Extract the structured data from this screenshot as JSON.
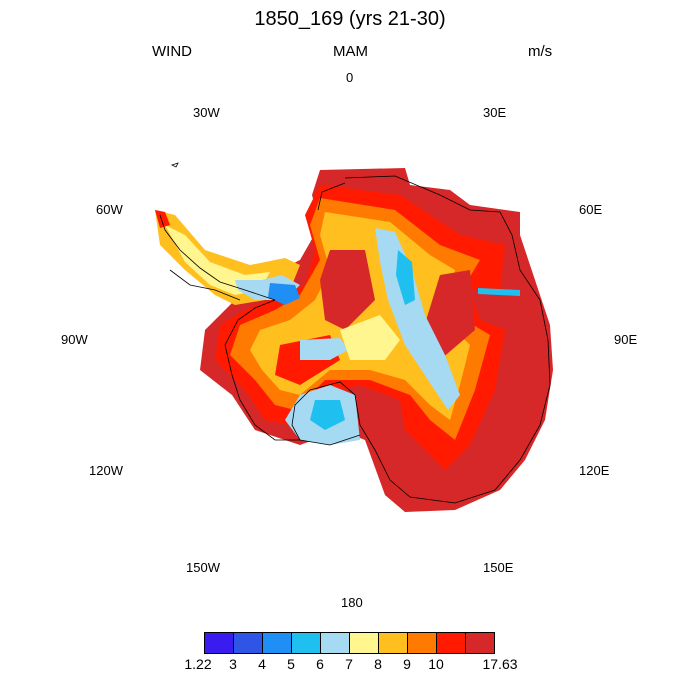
{
  "title": "1850_169 (yrs 21-30)",
  "left_label": "WIND",
  "center_label": "MAM",
  "right_label": "m/s",
  "longitude_labels": {
    "n0": "0",
    "e30": "30E",
    "w30": "30W",
    "e60": "60E",
    "w60": "60W",
    "e90": "90E",
    "w90": "90W",
    "e120": "120E",
    "w120": "120W",
    "e150": "150E",
    "w150": "150W",
    "s180": "180"
  },
  "colorbar": {
    "min_label": "1.22",
    "max_label": "17.63",
    "tick_labels": [
      "3",
      "4",
      "5",
      "6",
      "7",
      "8",
      "9",
      "10"
    ],
    "colors": [
      "#3a1cf0",
      "#2e55e6",
      "#1f8ef5",
      "#1fbff0",
      "#a6d9f2",
      "#fff68f",
      "#ffc01f",
      "#ff7a00",
      "#ff1a00",
      "#d62828"
    ]
  }
}
